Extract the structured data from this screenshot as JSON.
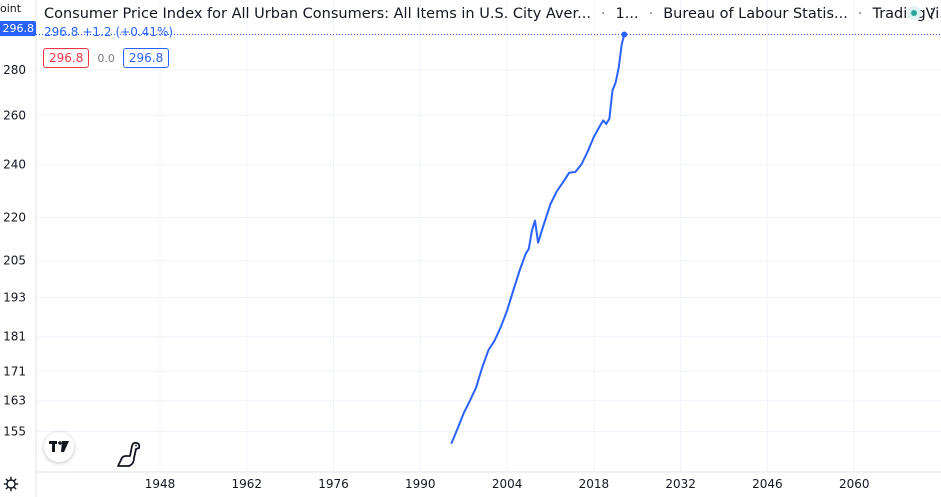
{
  "header": {
    "title": "Consumer Price Index for All Urban Consumers: All Items in U.S. City Aver...",
    "interval": "1...",
    "source": "Bureau of Labour Statis...",
    "platform": "TradingVi..."
  },
  "price": {
    "last": "296.8",
    "change": "+1.2",
    "change_pct": "(+0.41%)",
    "sell": "296.8",
    "spread": "0.0",
    "buy": "296.8"
  },
  "axis": {
    "unit_label": "oint",
    "last_badge": "296.8"
  },
  "colors": {
    "line": "#2962ff",
    "grid": "#f0f3fa",
    "sell": "#f23645",
    "buy": "#2962ff"
  },
  "icons": {
    "logo": "tradingview-logo-icon",
    "dino": "dinosaur-icon",
    "settings": "gear-icon"
  },
  "chart_data": {
    "type": "line",
    "title": "Consumer Price Index for All Urban Consumers: All Items in U.S. City Average",
    "xlabel": "",
    "ylabel": "",
    "scale": "log",
    "grid": true,
    "xlim": [
      1928,
      2074
    ],
    "ylim": [
      146,
      300
    ],
    "x_ticks": [
      1948,
      1962,
      1976,
      1990,
      2004,
      2018,
      2032,
      2046,
      2060
    ],
    "y_ticks": [
      155,
      163,
      171,
      181,
      193,
      205,
      220,
      240,
      260,
      280
    ],
    "tick_labels_x": [
      "1948",
      "1962",
      "1976",
      "1990",
      "2004",
      "2018",
      "2032",
      "2046",
      "2060"
    ],
    "tick_labels_y": [
      "155",
      "163",
      "171",
      "181",
      "193",
      "205",
      "220",
      "240",
      "260",
      "280"
    ],
    "series": [
      {
        "x": [
          1995.0,
          1996.0,
          1997.0,
          1998.0,
          1999.0,
          2000.0,
          2001.0,
          2002.0,
          2003.0,
          2004.0,
          2005.0,
          2006.0,
          2007.0,
          2007.5,
          2008.0,
          2008.5,
          2009.0,
          2009.5,
          2010.0,
          2011.0,
          2012.0,
          2013.0,
          2014.0,
          2015.0,
          2016.0,
          2017.0,
          2018.0,
          2019.0,
          2019.5,
          2020.0,
          2020.5,
          2021.0,
          2021.5,
          2022.0,
          2022.5,
          2022.9
        ],
        "y": [
          151.9,
          155.7,
          159.7,
          163.0,
          166.6,
          172.2,
          177.1,
          179.9,
          184.0,
          188.9,
          195.3,
          201.6,
          207.3,
          209.0,
          215.3,
          218.9,
          211.1,
          214.6,
          218.1,
          224.9,
          229.6,
          233.0,
          236.7,
          237.0,
          240.0,
          245.1,
          251.1,
          255.7,
          257.9,
          256.4,
          258.7,
          270.9,
          274.3,
          281.1,
          292.3,
          296.8
        ]
      }
    ]
  }
}
